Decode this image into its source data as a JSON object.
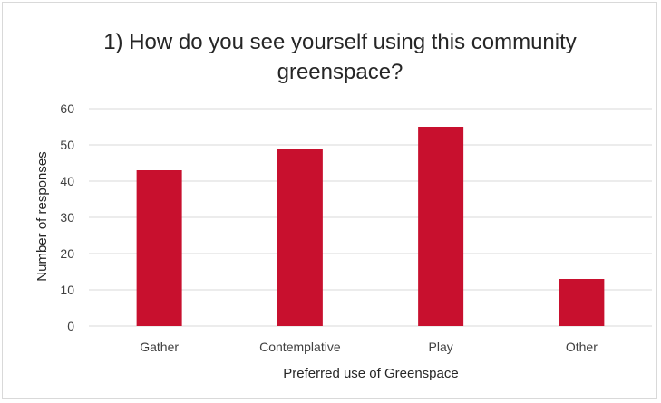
{
  "chart_data": {
    "type": "bar",
    "title_lines": [
      "1) How do you see yourself using this community",
      "greenspace?"
    ],
    "categories": [
      "Gather",
      "Contemplative",
      "Play",
      "Other"
    ],
    "values": [
      43,
      49,
      55,
      13
    ],
    "xlabel": "Preferred use of Greenspace",
    "ylabel": "Number of responses",
    "ylim": [
      0,
      60
    ],
    "yticks": [
      0,
      10,
      20,
      30,
      40,
      50,
      60
    ],
    "grid": true,
    "legend": "none",
    "bar_color": "#c8102e",
    "grid_color": "#d9d9d9"
  }
}
